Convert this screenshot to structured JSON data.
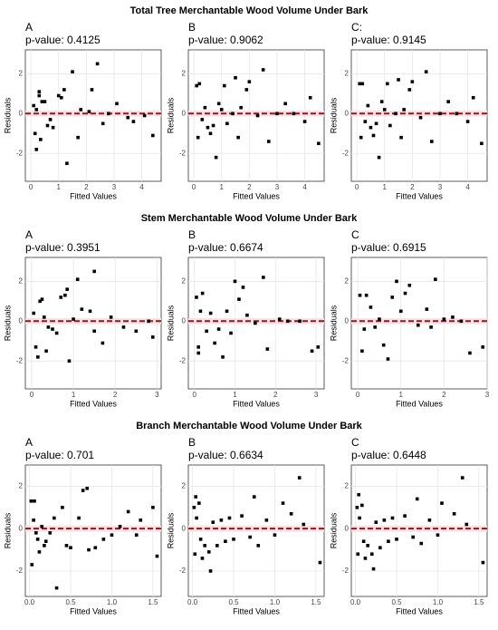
{
  "row_titles": [
    "Total Tree Merchantable Wood Volume Under Bark",
    "Stem Merchantable Wood Volume Under Bark",
    "Branch Merchantable Wood Volume Under Bark"
  ],
  "chart_data": [
    {
      "type": "scatter",
      "label": "A",
      "subtitle": "p-value: 0.4125",
      "xlabel": "Fitted Values",
      "ylabel": "Residuals",
      "x": [
        0.1,
        0.15,
        0.2,
        0.2,
        0.3,
        0.3,
        0.35,
        0.4,
        0.5,
        0.6,
        0.7,
        0.8,
        1.0,
        1.1,
        1.2,
        1.3,
        1.5,
        1.7,
        1.8,
        2.1,
        2.2,
        2.4,
        2.6,
        2.8,
        3.1,
        3.5,
        3.7,
        4.1,
        4.4
      ],
      "y": [
        0.4,
        -1.0,
        0.2,
        -1.8,
        1.1,
        0.9,
        -1.3,
        0.6,
        0.6,
        -0.6,
        -0.3,
        -0.7,
        0.9,
        0.8,
        1.2,
        -2.5,
        2.1,
        -1.2,
        0.2,
        0.1,
        1.2,
        2.5,
        -0.5,
        0,
        0.5,
        -0.2,
        -0.4,
        -0.1,
        -1.1
      ],
      "xlim": [
        -0.2,
        4.7
      ],
      "ylim": [
        -3.4,
        3.2
      ],
      "xticks": [
        0,
        1,
        2,
        3,
        4
      ],
      "yticks": [
        -2,
        0,
        2
      ],
      "reference_line": 0,
      "reference_band": [
        -0.15,
        0.15
      ],
      "color": "#000000",
      "line_color": "#8b1a1a",
      "band_color": "#fde0e6",
      "grid": true
    },
    {
      "type": "scatter",
      "label": "B",
      "subtitle": "p-value: 0.9062",
      "xlabel": "Fitted Values",
      "ylabel": "Residuals",
      "x": [
        0.1,
        0.15,
        0.2,
        0.3,
        0.4,
        0.5,
        0.6,
        0.7,
        0.8,
        0.9,
        1.0,
        1.1,
        1.2,
        1.4,
        1.5,
        1.6,
        1.7,
        1.9,
        2.0,
        2.3,
        2.5,
        2.7,
        3.0,
        3.3,
        3.6,
        4.0,
        4.2,
        4.5
      ],
      "y": [
        1.4,
        -1.2,
        1.5,
        -0.3,
        0.3,
        -0.7,
        -1.0,
        -0.6,
        -2.2,
        0.5,
        0.2,
        1.4,
        -0.5,
        0,
        1.8,
        -1.2,
        0.3,
        1.2,
        1.6,
        -0.1,
        2.2,
        -1.4,
        0,
        0.5,
        0,
        -0.4,
        0.8,
        -1.5
      ],
      "xlim": [
        -0.2,
        4.7
      ],
      "ylim": [
        -3.4,
        3.2
      ],
      "xticks": [
        0,
        1,
        2,
        3,
        4
      ],
      "yticks": [
        -2,
        0,
        2
      ],
      "reference_line": 0,
      "reference_band": [
        -0.15,
        0.15
      ],
      "color": "#000000",
      "line_color": "#8b1a1a",
      "band_color": "#fde0e6",
      "grid": true
    },
    {
      "type": "scatter",
      "label": "C:",
      "subtitle": "p-value: 0.9145",
      "xlabel": "Fitted Values",
      "ylabel": "Residuals",
      "x": [
        0.1,
        0.15,
        0.2,
        0.3,
        0.4,
        0.5,
        0.6,
        0.7,
        0.8,
        0.9,
        1.0,
        1.1,
        1.2,
        1.4,
        1.5,
        1.6,
        1.7,
        1.9,
        2.0,
        2.3,
        2.5,
        2.7,
        3.0,
        3.3,
        3.6,
        4.0,
        4.2,
        4.5
      ],
      "y": [
        1.5,
        -1.2,
        1.5,
        -0.4,
        0.4,
        -0.7,
        -1.1,
        -0.5,
        -2.2,
        0.6,
        0.2,
        1.5,
        -0.6,
        0,
        1.7,
        -1.2,
        0.2,
        1.2,
        1.6,
        -0.2,
        2.1,
        -1.4,
        0,
        0.6,
        0,
        -0.4,
        0.8,
        -1.5
      ],
      "xlim": [
        -0.2,
        4.7
      ],
      "ylim": [
        -3.4,
        3.2
      ],
      "xticks": [
        0,
        1,
        2,
        3,
        4
      ],
      "yticks": [
        -2,
        0,
        2
      ],
      "reference_line": 0,
      "reference_band": [
        -0.15,
        0.15
      ],
      "color": "#000000",
      "line_color": "#8b1a1a",
      "band_color": "#fde0e6",
      "grid": true
    },
    {
      "type": "scatter",
      "label": "A",
      "subtitle": "p-value: 0.3951",
      "xlabel": "Fitted Values",
      "ylabel": "Residuals",
      "x": [
        0.05,
        0.1,
        0.15,
        0.2,
        0.25,
        0.3,
        0.35,
        0.4,
        0.5,
        0.6,
        0.7,
        0.8,
        0.85,
        0.9,
        1.0,
        1.1,
        1.2,
        1.4,
        1.5,
        1.5,
        1.7,
        1.9,
        2.2,
        2.5,
        2.8,
        2.9
      ],
      "y": [
        0.4,
        -1.3,
        -1.8,
        1.0,
        1.1,
        0.2,
        -1.5,
        -0.3,
        -0.4,
        -0.6,
        1.2,
        1.3,
        1.6,
        -2.0,
        0.1,
        2.1,
        0.6,
        0.5,
        -0.5,
        2.5,
        -1.1,
        0.2,
        -0.3,
        -0.5,
        0,
        -0.8
      ],
      "xlim": [
        -0.15,
        3.1
      ],
      "ylim": [
        -3.4,
        3.2
      ],
      "xticks": [
        0,
        1,
        2,
        3
      ],
      "yticks": [
        -2,
        0,
        2
      ],
      "reference_line": 0,
      "reference_band": [
        -0.15,
        0.15
      ],
      "color": "#000000",
      "line_color": "#8b1a1a",
      "band_color": "#fde0e6",
      "grid": true
    },
    {
      "type": "scatter",
      "label": "B",
      "subtitle": "p-value: 0.6674",
      "xlabel": "Fitted Values",
      "ylabel": "Residuals",
      "x": [
        0.05,
        0.1,
        0.1,
        0.15,
        0.2,
        0.3,
        0.4,
        0.5,
        0.6,
        0.7,
        0.8,
        0.9,
        1.0,
        1.1,
        1.2,
        1.3,
        1.5,
        1.7,
        1.8,
        2.1,
        2.3,
        2.6,
        2.9,
        3.05
      ],
      "y": [
        1.2,
        -1.3,
        -1.6,
        0.5,
        1.4,
        -0.5,
        0.4,
        -1.1,
        -0.4,
        -1.8,
        0.5,
        -0.6,
        2.0,
        1.1,
        1.7,
        0.3,
        -0.1,
        2.2,
        -1.4,
        0.1,
        0,
        0,
        -1.5,
        -1.3
      ],
      "xlim": [
        -0.15,
        3.2
      ],
      "ylim": [
        -3.4,
        3.2
      ],
      "xticks": [
        0,
        1,
        2,
        3
      ],
      "yticks": [
        -2,
        0,
        2
      ],
      "reference_line": 0,
      "reference_band": [
        -0.15,
        0.15
      ],
      "color": "#000000",
      "line_color": "#8b1a1a",
      "band_color": "#fde0e6",
      "grid": true
    },
    {
      "type": "scatter",
      "label": "C",
      "subtitle": "p-value: 0.6915",
      "xlabel": "Fitted Values",
      "ylabel": "Residuals",
      "x": [
        0.05,
        0.1,
        0.15,
        0.2,
        0.3,
        0.4,
        0.5,
        0.6,
        0.7,
        0.8,
        0.9,
        1.0,
        1.1,
        1.2,
        1.4,
        1.6,
        1.7,
        1.8,
        2.0,
        2.2,
        2.4,
        2.6,
        2.9
      ],
      "y": [
        1.3,
        -1.5,
        -0.4,
        1.3,
        0.7,
        -0.3,
        0.1,
        -1.2,
        -1.9,
        1.2,
        2.0,
        0.5,
        1.4,
        1.8,
        -0.2,
        0.6,
        -0.3,
        2.1,
        0.1,
        0.2,
        0,
        -1.6,
        -1.3
      ],
      "xlim": [
        -0.15,
        3.0
      ],
      "ylim": [
        -3.4,
        3.2
      ],
      "xticks": [
        0,
        1,
        2,
        3
      ],
      "yticks": [
        -2,
        0,
        2
      ],
      "reference_line": 0,
      "reference_band": [
        -0.15,
        0.15
      ],
      "color": "#000000",
      "line_color": "#8b1a1a",
      "band_color": "#fde0e6",
      "grid": true
    },
    {
      "type": "scatter",
      "label": "A",
      "subtitle": "p-value: 0.701",
      "xlabel": "Fitted Values",
      "ylabel": "Residuals",
      "x": [
        0.02,
        0.03,
        0.05,
        0.06,
        0.08,
        0.1,
        0.12,
        0.15,
        0.18,
        0.2,
        0.25,
        0.3,
        0.33,
        0.4,
        0.45,
        0.5,
        0.6,
        0.65,
        0.7,
        0.72,
        0.8,
        0.9,
        1.0,
        1.1,
        1.2,
        1.3,
        1.35,
        1.5,
        1.55
      ],
      "y": [
        1.3,
        -1.7,
        0.4,
        1.3,
        -0.2,
        -0.5,
        -1.1,
        0.1,
        -0.8,
        -0.6,
        -0.2,
        0.5,
        -2.8,
        1.0,
        -0.8,
        -0.9,
        0.5,
        1.8,
        1.9,
        -1.0,
        -0.9,
        -0.5,
        -0.3,
        0.1,
        0.8,
        -0.3,
        0.4,
        1.0,
        -1.3
      ],
      "xlim": [
        -0.05,
        1.6
      ],
      "ylim": [
        -3.2,
        3.0
      ],
      "xticks": [
        {
          "value": 0,
          "label": "0.0"
        },
        0.5,
        {
          "value": 1,
          "label": "1.0"
        },
        1.5
      ],
      "yticks": [
        -2,
        0,
        2
      ],
      "reference_line": 0,
      "reference_band": [
        -0.15,
        0.15
      ],
      "color": "#000000",
      "line_color": "#8b1a1a",
      "band_color": "#fde0e6",
      "grid": true
    },
    {
      "type": "scatter",
      "label": "B",
      "subtitle": "p-value: 0.6634",
      "xlabel": "Fitted Values",
      "ylabel": "Residuals",
      "x": [
        0.02,
        0.03,
        0.04,
        0.05,
        0.08,
        0.1,
        0.12,
        0.15,
        0.2,
        0.22,
        0.25,
        0.3,
        0.35,
        0.4,
        0.45,
        0.5,
        0.6,
        0.7,
        0.75,
        0.8,
        0.9,
        1.0,
        1.1,
        1.2,
        1.3,
        1.35,
        1.55
      ],
      "y": [
        1.0,
        -1.2,
        1.5,
        0.5,
        1.2,
        -0.5,
        -1.4,
        -0.8,
        -1.1,
        -2.0,
        0.3,
        -0.8,
        0.4,
        -0.6,
        0.5,
        -0.5,
        0.6,
        -0.4,
        1.5,
        -0.8,
        0.4,
        -0.3,
        1.2,
        0.7,
        2.4,
        0.2,
        -1.6
      ],
      "xlim": [
        -0.05,
        1.6
      ],
      "ylim": [
        -3.2,
        3.0
      ],
      "xticks": [
        {
          "value": 0,
          "label": "0.0"
        },
        0.5,
        {
          "value": 1,
          "label": "1.0"
        },
        1.5
      ],
      "yticks": [
        -2,
        0,
        2
      ],
      "reference_line": 0,
      "reference_band": [
        -0.15,
        0.15
      ],
      "color": "#000000",
      "line_color": "#8b1a1a",
      "band_color": "#fde0e6",
      "grid": true
    },
    {
      "type": "scatter",
      "label": "C",
      "subtitle": "p-value: 0.6448",
      "xlabel": "Fitted Values",
      "ylabel": "Residuals",
      "x": [
        0.02,
        0.03,
        0.04,
        0.05,
        0.08,
        0.1,
        0.12,
        0.15,
        0.2,
        0.22,
        0.25,
        0.3,
        0.35,
        0.4,
        0.45,
        0.5,
        0.6,
        0.7,
        0.75,
        0.8,
        0.9,
        1.0,
        1.05,
        1.2,
        1.3,
        1.35,
        1.55
      ],
      "y": [
        1.0,
        -1.2,
        1.6,
        0.5,
        1.1,
        -0.6,
        -1.4,
        -0.8,
        -1.2,
        -1.9,
        0.3,
        -0.9,
        0.4,
        -0.6,
        0.5,
        -0.5,
        0.6,
        -0.4,
        1.4,
        -0.7,
        0.4,
        -0.3,
        1.2,
        0.7,
        2.4,
        0.2,
        -1.6
      ],
      "xlim": [
        -0.05,
        1.6
      ],
      "ylim": [
        -3.2,
        3.0
      ],
      "xticks": [
        {
          "value": 0,
          "label": "0.0"
        },
        0.5,
        {
          "value": 1,
          "label": "1.0"
        },
        1.5
      ],
      "yticks": [
        -2,
        0,
        2
      ],
      "reference_line": 0,
      "reference_band": [
        -0.15,
        0.15
      ],
      "color": "#000000",
      "line_color": "#8b1a1a",
      "band_color": "#fde0e6",
      "grid": true
    }
  ]
}
